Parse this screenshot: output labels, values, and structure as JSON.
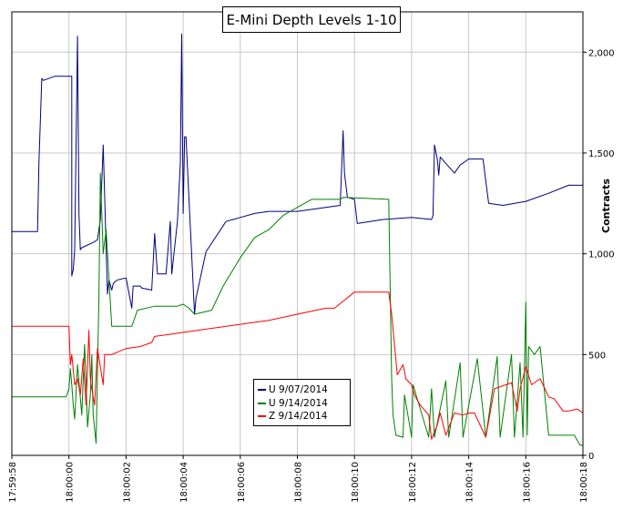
{
  "chart_data": {
    "type": "line",
    "title": "E-Mini Depth Levels 1-10",
    "xlabel": "",
    "ylabel": "Contracts",
    "xlim": [
      "17:59:58",
      "18:00:18"
    ],
    "ylim": [
      0,
      2200
    ],
    "x_ticks": [
      "17:59:58",
      "18:00:00",
      "18:00:02",
      "18:00:04",
      "18:00:06",
      "18:00:08",
      "18:00:10",
      "18:00:12",
      "18:00:14",
      "18:00:16",
      "18:00:18"
    ],
    "y_ticks": [
      "0",
      "500",
      "1,000",
      "1,500",
      "2,000"
    ],
    "y_tick_values": [
      0,
      500,
      1000,
      1500,
      2000
    ],
    "grid": true,
    "legend_position": "bottom-center",
    "series": [
      {
        "name": "U 9/07/2014",
        "color": "#000080",
        "x": [
          "17:59:58.0",
          "17:59:58.9",
          "17:59:58.95",
          "17:59:59.05",
          "17:59:59.1",
          "17:59:59.5",
          "18:00:00.1",
          "18:00:00.1",
          "18:00:00.15",
          "18:00:00.2",
          "18:00:00.3",
          "18:00:00.35",
          "18:00:00.4",
          "18:00:00.45",
          "18:00:00.9",
          "18:00:01.0",
          "18:00:01.1",
          "18:00:01.2",
          "18:00:01.35",
          "18:00:01.4",
          "18:00:01.5",
          "18:00:01.55",
          "18:00:01.6",
          "18:00:01.7",
          "18:00:02.0",
          "18:00:02.2",
          "18:00:02.25",
          "18:00:02.5",
          "18:00:02.55",
          "18:00:02.9",
          "18:00:03.0",
          "18:00:03.1",
          "18:00:03.3",
          "18:00:03.4",
          "18:00:03.55",
          "18:00:03.6",
          "18:00:03.8",
          "18:00:03.9",
          "18:00:03.95",
          "18:00:04.0",
          "18:00:04.05",
          "18:00:04.1",
          "18:00:04.4",
          "18:00:04.45",
          "18:00:04.8",
          "18:00:05.5",
          "18:00:06.0",
          "18:00:06.5",
          "18:00:07.0",
          "18:00:07.4",
          "18:00:08.0",
          "18:00:09.5",
          "18:00:09.6",
          "18:00:09.65",
          "18:00:09.75",
          "18:00:10.0",
          "18:00:10.1",
          "18:00:11.0",
          "18:00:12.0",
          "18:00:12.7",
          "18:00:12.75",
          "18:00:12.8",
          "18:00:12.9",
          "18:00:12.95",
          "18:00:13.0",
          "18:00:13.5",
          "18:00:13.7",
          "18:00:14.0",
          "18:00:14.5",
          "18:00:14.7",
          "18:00:15.2",
          "18:00:16.0",
          "18:00:16.8",
          "18:00:17.5",
          "18:00:18.0"
        ],
        "values": [
          1110,
          1110,
          1460,
          1870,
          1860,
          1880,
          1880,
          890,
          920,
          1020,
          2080,
          1200,
          1020,
          1030,
          1060,
          1070,
          1170,
          1540,
          800,
          870,
          820,
          850,
          860,
          870,
          880,
          730,
          840,
          840,
          830,
          820,
          1100,
          900,
          900,
          900,
          1160,
          900,
          1160,
          1450,
          2090,
          1200,
          1580,
          1580,
          700,
          780,
          1010,
          1160,
          1180,
          1200,
          1210,
          1210,
          1210,
          1240,
          1610,
          1400,
          1280,
          1270,
          1150,
          1170,
          1180,
          1170,
          1190,
          1540,
          1470,
          1390,
          1480,
          1400,
          1440,
          1470,
          1470,
          1250,
          1240,
          1260,
          1300,
          1340,
          1340
        ]
      },
      {
        "name": "U 9/14/2014",
        "color": "#008000",
        "x": [
          "17:59:58.0",
          "17:59:59.9",
          "18:00:00.0",
          "18:00:00.05",
          "18:00:00.1",
          "18:00:00.15",
          "18:00:00.2",
          "18:00:00.3",
          "18:00:00.45",
          "18:00:00.55",
          "18:00:00.6",
          "18:00:00.65",
          "18:00:00.75",
          "18:00:00.8",
          "18:00:00.85",
          "18:00:00.95",
          "18:00:01.05",
          "18:00:01.1",
          "18:00:01.2",
          "18:00:01.3",
          "18:00:01.5",
          "18:00:01.6",
          "18:00:02.2",
          "18:00:02.4",
          "18:00:03.0",
          "18:00:03.8",
          "18:00:04.0",
          "18:00:04.2",
          "18:00:04.4",
          "18:00:05.0",
          "18:00:05.4",
          "18:00:06.0",
          "18:00:06.5",
          "18:00:07.0",
          "18:00:07.5",
          "18:00:08.0",
          "18:00:08.5",
          "18:00:09.0",
          "18:00:09.5",
          "18:00:09.6",
          "18:00:11.2",
          "18:00:11.3",
          "18:00:11.35",
          "18:00:11.45",
          "18:00:11.7",
          "18:00:11.75",
          "18:00:12.0",
          "18:00:12.05",
          "18:00:12.6",
          "18:00:12.7",
          "18:00:12.8",
          "18:00:13.2",
          "18:00:13.3",
          "18:00:13.7",
          "18:00:13.8",
          "18:00:14.3",
          "18:00:14.6",
          "18:00:15.0",
          "18:00:15.1",
          "18:00:15.5",
          "18:00:15.6",
          "18:00:15.8",
          "18:00:15.9",
          "18:00:16.0",
          "18:00:16.05",
          "18:00:16.1",
          "18:00:16.3",
          "18:00:16.5",
          "18:00:16.8",
          "18:00:17.5",
          "18:00:17.7",
          "18:00:17.9",
          "18:00:18.0"
        ],
        "values": [
          290,
          290,
          330,
          430,
          350,
          250,
          180,
          450,
          200,
          550,
          360,
          140,
          300,
          500,
          200,
          60,
          780,
          1400,
          1000,
          1120,
          640,
          640,
          640,
          720,
          740,
          740,
          750,
          730,
          700,
          720,
          840,
          980,
          1080,
          1120,
          1190,
          1230,
          1270,
          1270,
          1270,
          1280,
          1270,
          380,
          200,
          100,
          90,
          300,
          90,
          350,
          90,
          330,
          90,
          370,
          90,
          460,
          90,
          480,
          90,
          490,
          90,
          500,
          90,
          460,
          90,
          760,
          100,
          540,
          500,
          540,
          100,
          100,
          100,
          50,
          50
        ]
      },
      {
        "name": "Z 9/14/2014",
        "color": "#ff0000",
        "x": [
          "17:59:58.0",
          "18:00:00.0",
          "18:00:00.05",
          "18:00:00.1",
          "18:00:00.2",
          "18:00:00.3",
          "18:00:00.4",
          "18:00:00.5",
          "18:00:00.6",
          "18:00:00.7",
          "18:00:00.75",
          "18:00:00.8",
          "18:00:00.9",
          "18:00:01.0",
          "18:00:01.2",
          "18:00:01.25",
          "18:00:01.5",
          "18:00:02.0",
          "18:00:02.5",
          "18:00:02.9",
          "18:00:03.0",
          "18:00:03.5",
          "18:00:04.0",
          "18:00:05.0",
          "18:00:06.0",
          "18:00:07.0",
          "18:00:08.0",
          "18:00:09.0",
          "18:00:09.3",
          "18:00:10.0",
          "18:00:11.0",
          "18:00:11.2",
          "18:00:11.3",
          "18:00:11.5",
          "18:00:11.7",
          "18:00:11.8",
          "18:00:12.0",
          "18:00:12.1",
          "18:00:12.3",
          "18:00:12.6",
          "18:00:12.7",
          "18:00:12.9",
          "18:00:13.0",
          "18:00:13.2",
          "18:00:13.5",
          "18:00:13.8",
          "18:00:14.0",
          "18:00:14.2",
          "18:00:14.6",
          "18:00:14.9",
          "18:00:15.3",
          "18:00:15.5",
          "18:00:15.7",
          "18:00:15.8",
          "18:00:16.0",
          "18:00:16.2",
          "18:00:16.5",
          "18:00:16.8",
          "18:00:17.0",
          "18:00:17.3",
          "18:00:17.5",
          "18:00:17.8",
          "18:00:18.0"
        ],
        "values": [
          640,
          640,
          450,
          500,
          350,
          380,
          300,
          480,
          250,
          620,
          380,
          330,
          250,
          530,
          350,
          500,
          500,
          530,
          540,
          560,
          590,
          600,
          610,
          630,
          650,
          670,
          700,
          730,
          730,
          810,
          810,
          810,
          700,
          400,
          450,
          380,
          350,
          300,
          250,
          200,
          80,
          150,
          210,
          100,
          210,
          200,
          210,
          210,
          90,
          330,
          350,
          360,
          220,
          330,
          440,
          350,
          380,
          290,
          280,
          220,
          220,
          230,
          210
        ]
      }
    ]
  }
}
